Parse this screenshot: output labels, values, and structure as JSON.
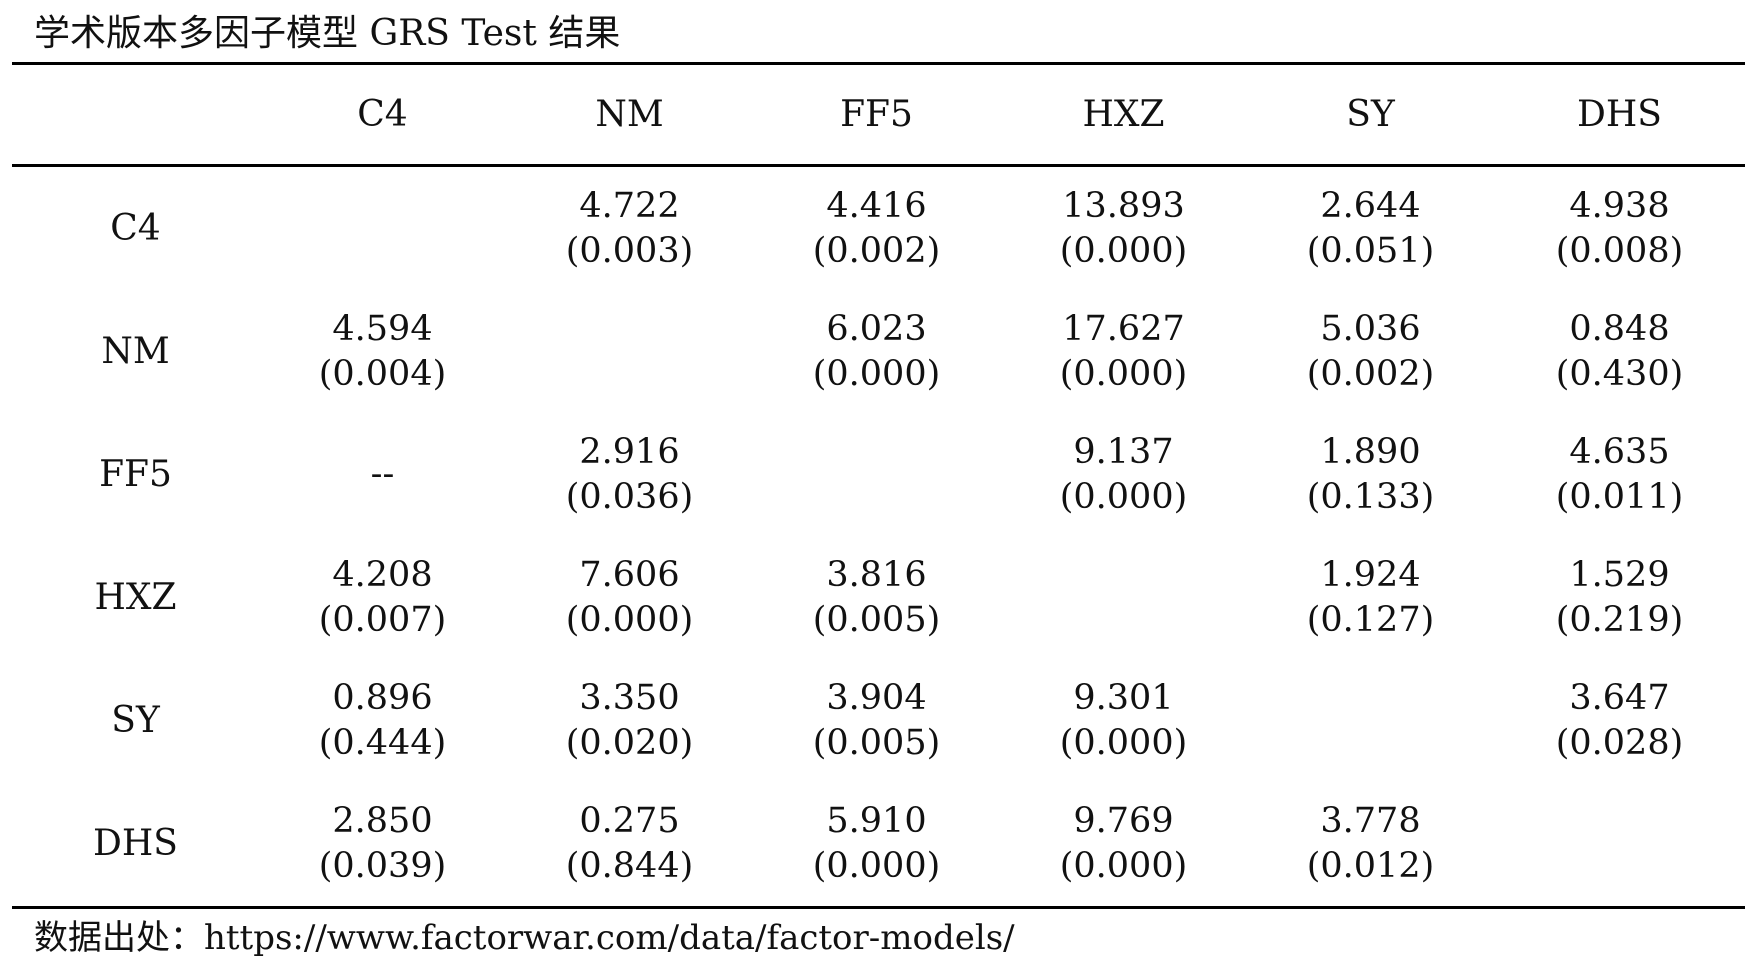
{
  "title": "学术版本多因子模型 GRS Test 结果",
  "columns": [
    "C4",
    "NM",
    "FF5",
    "HXZ",
    "SY",
    "DHS"
  ],
  "rows": [
    {
      "label": "C4",
      "cells": [
        {
          "stat": "",
          "p": ""
        },
        {
          "stat": "4.722",
          "p": "(0.003)"
        },
        {
          "stat": "4.416",
          "p": "(0.002)"
        },
        {
          "stat": "13.893",
          "p": "(0.000)"
        },
        {
          "stat": "2.644",
          "p": "(0.051)"
        },
        {
          "stat": "4.938",
          "p": "(0.008)"
        }
      ]
    },
    {
      "label": "NM",
      "cells": [
        {
          "stat": "4.594",
          "p": "(0.004)"
        },
        {
          "stat": "",
          "p": ""
        },
        {
          "stat": "6.023",
          "p": "(0.000)"
        },
        {
          "stat": "17.627",
          "p": "(0.000)"
        },
        {
          "stat": "5.036",
          "p": "(0.002)"
        },
        {
          "stat": "0.848",
          "p": "(0.430)"
        }
      ]
    },
    {
      "label": "FF5",
      "cells": [
        {
          "stat": "--",
          "p": ""
        },
        {
          "stat": "2.916",
          "p": "(0.036)"
        },
        {
          "stat": "",
          "p": ""
        },
        {
          "stat": "9.137",
          "p": "(0.000)"
        },
        {
          "stat": "1.890",
          "p": "(0.133)"
        },
        {
          "stat": "4.635",
          "p": "(0.011)"
        }
      ]
    },
    {
      "label": "HXZ",
      "cells": [
        {
          "stat": "4.208",
          "p": "(0.007)"
        },
        {
          "stat": "7.606",
          "p": "(0.000)"
        },
        {
          "stat": "3.816",
          "p": "(0.005)"
        },
        {
          "stat": "",
          "p": ""
        },
        {
          "stat": "1.924",
          "p": "(0.127)"
        },
        {
          "stat": "1.529",
          "p": "(0.219)"
        }
      ]
    },
    {
      "label": "SY",
      "cells": [
        {
          "stat": "0.896",
          "p": "(0.444)"
        },
        {
          "stat": "3.350",
          "p": "(0.020)"
        },
        {
          "stat": "3.904",
          "p": "(0.005)"
        },
        {
          "stat": "9.301",
          "p": "(0.000)"
        },
        {
          "stat": "",
          "p": ""
        },
        {
          "stat": "3.647",
          "p": "(0.028)"
        }
      ]
    },
    {
      "label": "DHS",
      "cells": [
        {
          "stat": "2.850",
          "p": "(0.039)"
        },
        {
          "stat": "0.275",
          "p": "(0.844)"
        },
        {
          "stat": "5.910",
          "p": "(0.000)"
        },
        {
          "stat": "9.769",
          "p": "(0.000)"
        },
        {
          "stat": "3.778",
          "p": "(0.012)"
        },
        {
          "stat": "",
          "p": ""
        }
      ]
    }
  ],
  "footer": "数据出处：https://www.factorwar.com/data/factor-models/"
}
